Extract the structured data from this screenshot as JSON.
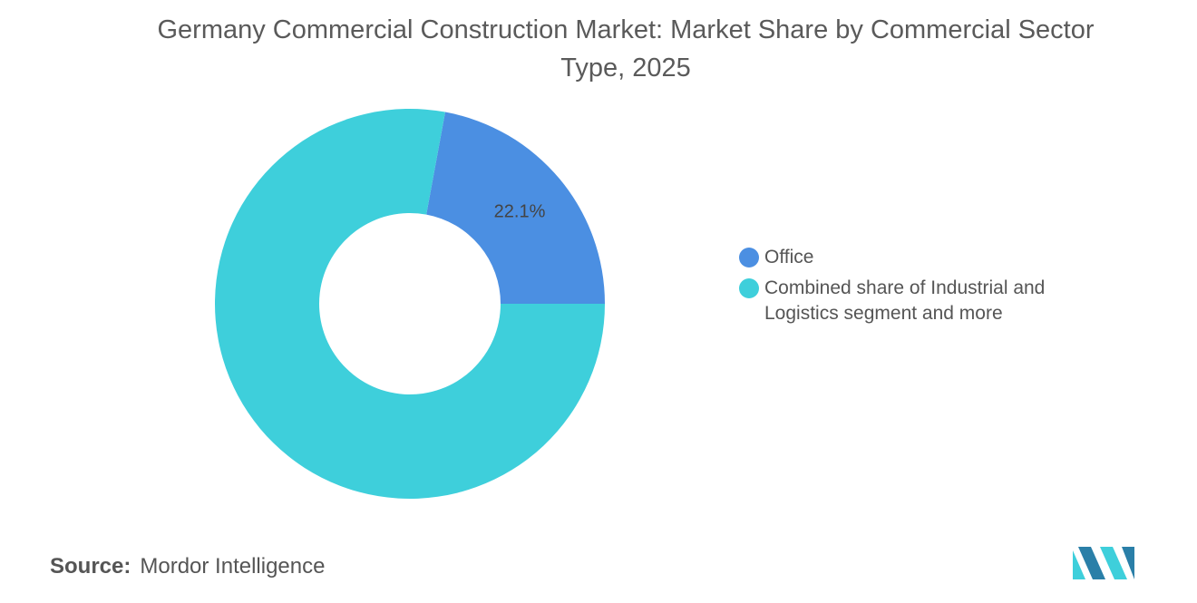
{
  "chart_data": {
    "type": "pie",
    "title": "Germany Commercial Construction Market: Market Share by Commercial Sector Type, 2025",
    "categories": [
      "Office",
      "Combined share of Industrial and Logistics segment and more"
    ],
    "values": [
      22.1,
      77.9
    ],
    "value_labels": [
      "22.1%",
      null
    ],
    "colors": [
      "#4b8fe2",
      "#3ecfdb"
    ],
    "donut": true,
    "source_label": "Source:",
    "source": "Mordor Intelligence"
  }
}
